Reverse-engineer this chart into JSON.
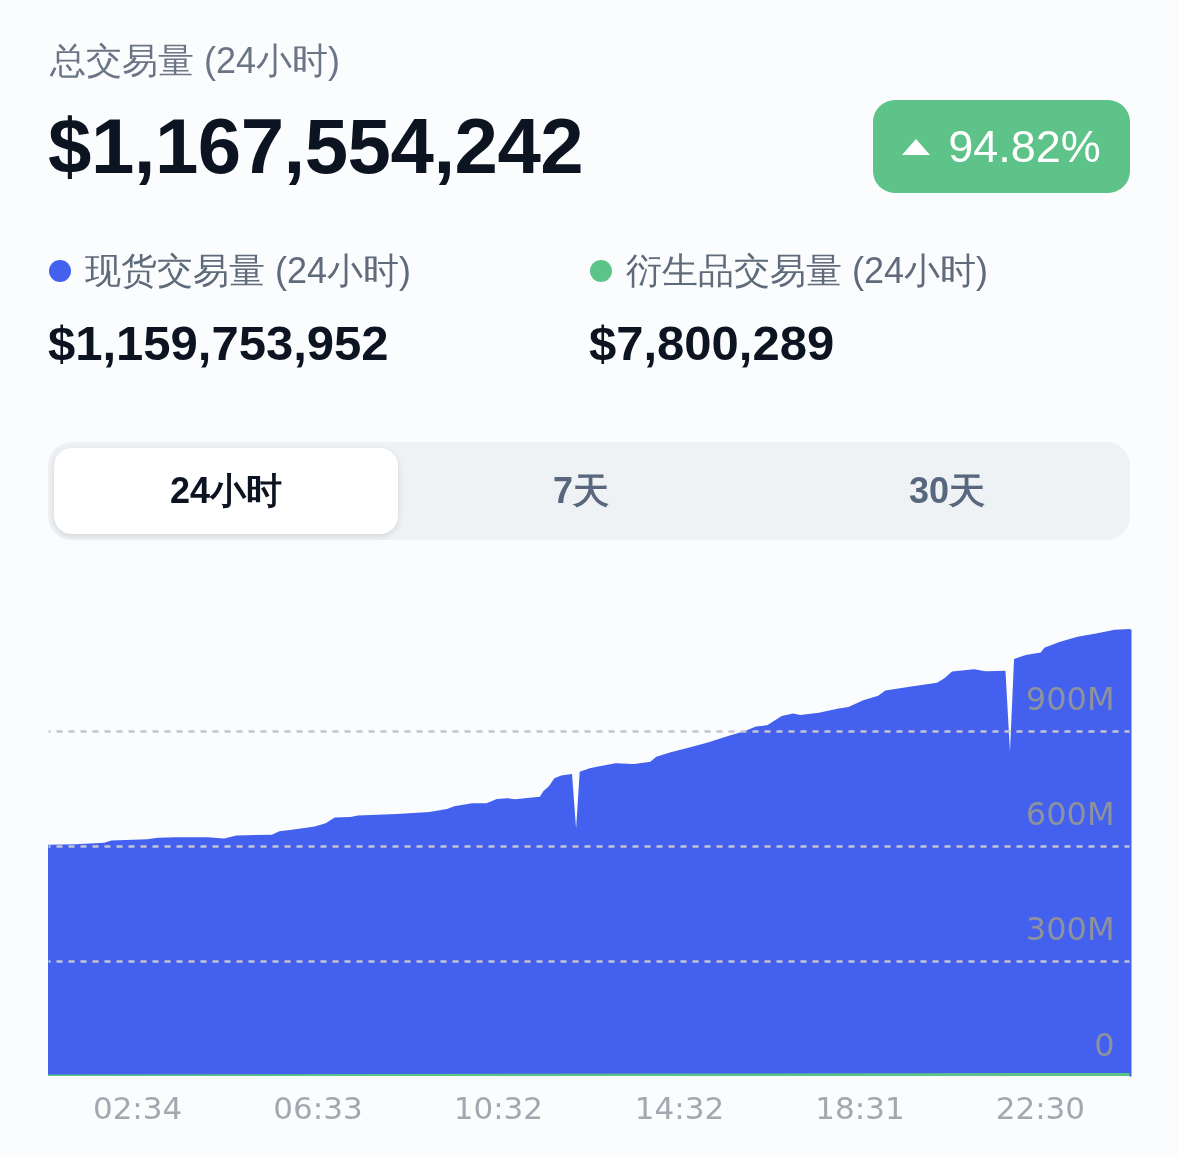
{
  "chart_data": {
    "type": "area",
    "title": "总交易量 (24小时)",
    "subtitle": "$1,167,554,242",
    "annotations": [
      "94.82%",
      "$1,159,753,952",
      "$7,800,289",
      "24小时",
      "7天",
      "30天"
    ],
    "x": [
      0.6,
      1.21,
      1.84,
      2.0,
      2.79,
      3.03,
      3.42,
      4.13,
      4.49,
      4.76,
      5.54,
      5.71,
      5.94,
      6.18,
      6.49,
      6.73,
      6.93,
      7.28,
      7.44,
      8.3,
      9.02,
      9.41,
      9.57,
      9.96,
      10.28,
      10.51,
      10.75,
      10.91,
      11.46,
      11.54,
      11.66,
      11.78,
      11.93,
      12.17,
      12.26,
      12.34,
      12.56,
      12.72,
      13.13,
      13.54,
      13.9,
      14.03,
      14.35,
      14.76,
      15.17,
      15.58,
      15.99,
      16.23,
      16.48,
      16.8,
      17.05,
      17.21,
      17.62,
      18.03,
      18.27,
      18.6,
      18.93,
      19.09,
      19.66,
      20.23,
      20.4,
      20.56,
      21.05,
      21.3,
      21.74,
      21.84,
      21.93,
      22.19,
      22.52,
      22.6,
      22.93,
      23.33,
      23.74,
      24.15,
      24.49
    ],
    "series": [
      {
        "name": "现货交易量 (24小时)",
        "color": "#4361ee",
        "values": [
          603,
          604,
          608,
          614,
          617,
          621,
          622,
          622,
          619,
          627,
          629,
          638,
          641,
          645,
          650,
          659,
          674,
          675,
          679,
          683,
          688,
          696,
          703,
          711,
          711,
          722,
          724,
          721,
          728,
          743,
          755,
          776,
          783,
          787,
          645,
          793,
          802,
          806,
          815,
          813,
          819,
          832,
          844,
          856,
          869,
          885,
          899,
          911,
          914,
          938,
          945,
          941,
          947,
          957,
          962,
          979,
          991,
          1005,
          1015,
          1025,
          1037,
          1054,
          1060,
          1055,
          1056,
          846,
          1087,
          1097,
          1104,
          1116,
          1131,
          1145,
          1153,
          1163,
          1165
        ]
      },
      {
        "name": "衍生品交易量 (24小时)",
        "color": "#5bc589",
        "x": [
          0.6,
          24.49
        ],
        "values": [
          4,
          8
        ]
      }
    ],
    "xlim": [
      0.6,
      24.49
    ],
    "xticks": [
      {
        "value": 2.567,
        "label": "02:34"
      },
      {
        "value": 6.55,
        "label": "06:33"
      },
      {
        "value": 10.533,
        "label": "10:32"
      },
      {
        "value": 14.533,
        "label": "14:32"
      },
      {
        "value": 18.517,
        "label": "18:31"
      },
      {
        "value": 22.5,
        "label": "22:30"
      }
    ],
    "ylim": [
      0,
      1165
    ],
    "yticks": [
      0,
      {
        "value": 300,
        "label": "300M"
      },
      {
        "value": 600,
        "label": "600M"
      },
      {
        "value": 900,
        "label": "900M"
      }
    ],
    "grid": "y",
    "legend": "top left"
  }
}
